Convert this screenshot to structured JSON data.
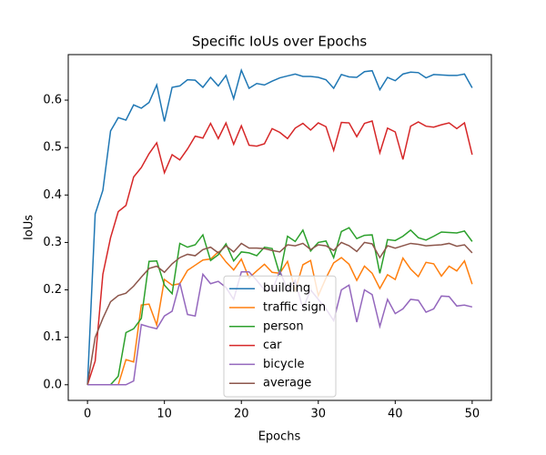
{
  "chart_data": {
    "type": "line",
    "title": "Specific IoUs over Epochs",
    "x_label": "Epochs",
    "y_label": "IoUs",
    "x": [
      0,
      1,
      2,
      3,
      4,
      5,
      6,
      7,
      8,
      9,
      10,
      11,
      12,
      13,
      14,
      15,
      16,
      17,
      18,
      19,
      20,
      21,
      22,
      23,
      24,
      25,
      26,
      27,
      28,
      29,
      30,
      31,
      32,
      33,
      34,
      35,
      36,
      37,
      38,
      39,
      40,
      41,
      42,
      43,
      44,
      45,
      46,
      47,
      48,
      49,
      50
    ],
    "xlim": [
      -2.5,
      52.5
    ],
    "xticks": [
      0,
      10,
      20,
      30,
      40,
      50
    ],
    "ylim": [
      -0.033,
      0.696
    ],
    "yticks": [
      {
        "value": 0,
        "label": "0.0"
      },
      0.1,
      0.2,
      0.3,
      0.4,
      0.5,
      0.6
    ],
    "grid": false,
    "legend": "lower center",
    "series": [
      {
        "name": "building",
        "color": "#1f77b4",
        "values": [
          0,
          0.36,
          0.41,
          0.535,
          0.563,
          0.558,
          0.59,
          0.583,
          0.595,
          0.632,
          0.555,
          0.627,
          0.63,
          0.643,
          0.642,
          0.627,
          0.648,
          0.63,
          0.652,
          0.603,
          0.663,
          0.625,
          0.635,
          0.632,
          0.64,
          0.647,
          0.651,
          0.655,
          0.65,
          0.65,
          0.648,
          0.643,
          0.625,
          0.654,
          0.649,
          0.648,
          0.66,
          0.662,
          0.622,
          0.648,
          0.641,
          0.655,
          0.659,
          0.658,
          0.647,
          0.654,
          0.653,
          0.652,
          0.652,
          0.655,
          0.626
        ]
      },
      {
        "name": "traffic sign",
        "color": "#ff7f0e",
        "values": [
          0,
          0,
          0,
          0,
          0,
          0.053,
          0.048,
          0.168,
          0.17,
          0.126,
          0.222,
          0.21,
          0.213,
          0.241,
          0.252,
          0.263,
          0.265,
          0.28,
          0.259,
          0.242,
          0.265,
          0.225,
          0.24,
          0.254,
          0.237,
          0.235,
          0.26,
          0.199,
          0.253,
          0.262,
          0.188,
          0.225,
          0.257,
          0.268,
          0.254,
          0.22,
          0.25,
          0.235,
          0.203,
          0.232,
          0.222,
          0.267,
          0.244,
          0.228,
          0.258,
          0.255,
          0.229,
          0.25,
          0.24,
          0.261,
          0.212
        ]
      },
      {
        "name": "person",
        "color": "#2ca02c",
        "values": [
          0,
          0,
          0,
          0,
          0.018,
          0.11,
          0.118,
          0.14,
          0.26,
          0.261,
          0.21,
          0.192,
          0.298,
          0.29,
          0.295,
          0.316,
          0.262,
          0.274,
          0.297,
          0.261,
          0.28,
          0.278,
          0.272,
          0.29,
          0.287,
          0.232,
          0.313,
          0.302,
          0.326,
          0.282,
          0.3,
          0.303,
          0.268,
          0.323,
          0.331,
          0.308,
          0.315,
          0.316,
          0.235,
          0.306,
          0.304,
          0.313,
          0.326,
          0.31,
          0.305,
          0.313,
          0.322,
          0.321,
          0.32,
          0.324,
          0.302
        ]
      },
      {
        "name": "car",
        "color": "#d62728",
        "values": [
          0,
          0.05,
          0.233,
          0.31,
          0.365,
          0.378,
          0.438,
          0.458,
          0.487,
          0.51,
          0.447,
          0.485,
          0.474,
          0.497,
          0.524,
          0.52,
          0.551,
          0.519,
          0.552,
          0.507,
          0.546,
          0.505,
          0.503,
          0.508,
          0.54,
          0.532,
          0.519,
          0.541,
          0.551,
          0.537,
          0.552,
          0.544,
          0.494,
          0.553,
          0.552,
          0.523,
          0.551,
          0.556,
          0.489,
          0.541,
          0.533,
          0.475,
          0.545,
          0.554,
          0.545,
          0.543,
          0.548,
          0.552,
          0.54,
          0.552,
          0.485
        ]
      },
      {
        "name": "bicycle",
        "color": "#9467bd",
        "values": [
          0,
          0,
          0,
          0,
          0,
          0,
          0.008,
          0.127,
          0.122,
          0.118,
          0.145,
          0.155,
          0.215,
          0.148,
          0.145,
          0.233,
          0.213,
          0.218,
          0.205,
          0.18,
          0.238,
          0.238,
          0.22,
          0.2,
          0.198,
          0.24,
          0.2,
          0.22,
          0.16,
          0.2,
          0.18,
          0.16,
          0.135,
          0.2,
          0.21,
          0.132,
          0.2,
          0.19,
          0.123,
          0.18,
          0.15,
          0.16,
          0.18,
          0.178,
          0.153,
          0.16,
          0.187,
          0.186,
          0.166,
          0.168,
          0.164
        ]
      },
      {
        "name": "average",
        "color": "#8c564b",
        "values": [
          0,
          0.1,
          0.14,
          0.175,
          0.188,
          0.193,
          0.208,
          0.227,
          0.245,
          0.25,
          0.237,
          0.255,
          0.268,
          0.275,
          0.272,
          0.285,
          0.29,
          0.278,
          0.293,
          0.28,
          0.298,
          0.288,
          0.288,
          0.287,
          0.283,
          0.28,
          0.295,
          0.293,
          0.298,
          0.285,
          0.295,
          0.293,
          0.283,
          0.3,
          0.293,
          0.281,
          0.3,
          0.297,
          0.268,
          0.293,
          0.288,
          0.293,
          0.298,
          0.296,
          0.293,
          0.294,
          0.295,
          0.298,
          0.292,
          0.295,
          0.278
        ]
      }
    ]
  }
}
